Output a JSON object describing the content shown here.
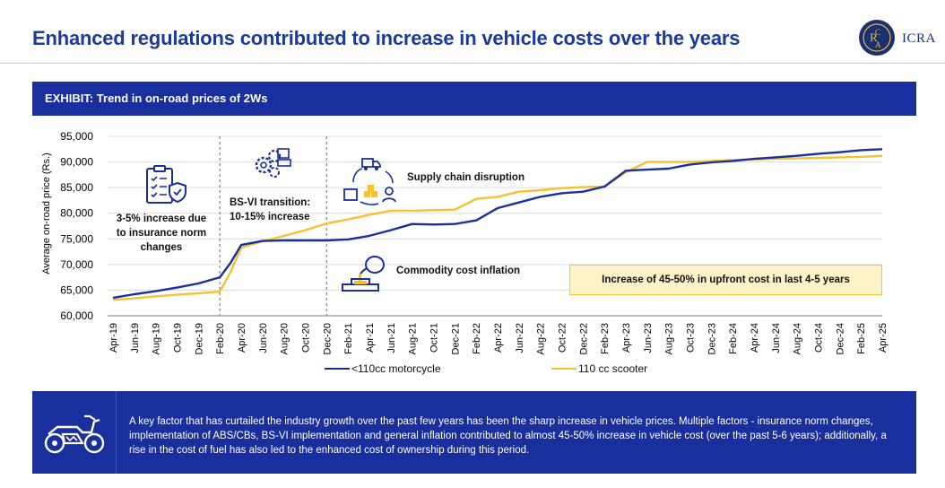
{
  "header": {
    "title": "Enhanced regulations contributed to increase in vehicle costs over the years",
    "logo_text": "ICRA",
    "logo_letters": "ICRA"
  },
  "exhibit": {
    "label": "EXHIBIT: Trend in on-road prices of 2Ws"
  },
  "annotations": {
    "insurance": "3-5% increase due to insurance norm changes",
    "bs6_line1": "BS-VI transition:",
    "bs6_line2": "10-15% increase",
    "supply": "Supply chain disruption",
    "commodity": "Commodity cost inflation",
    "callout": "Increase of 45-50% in upfront cost in last 4-5 years"
  },
  "footer": {
    "text": "A key factor that has curtailed the industry growth over the past few years has been the sharp increase in vehicle prices. Multiple factors - insurance norm changes, implementation of ABS/CBs, BS-VI implementation and general inflation contributed to almost 45-50% increase in vehicle cost (over the past 5-6 years); additionally, a rise in the cost of fuel has also led to the enhanced cost of ownership during this period."
  },
  "icons": [
    "checklist-shield-icon",
    "gears-truck-icon",
    "supply-chain-cycle-icon",
    "pouring-crucible-icon",
    "motorcycle-icon"
  ],
  "colors": {
    "accent": "#1a2f9e",
    "motorcycle": "#1a2f9e",
    "scooter": "#f5c12e",
    "callout_bg": "#fef3c7"
  },
  "chart_data": {
    "type": "line",
    "ylabel": "Average on-road price (Rs.)",
    "ylim": [
      60000,
      95000
    ],
    "yticks": [
      "60,000",
      "65,000",
      "70,000",
      "75,000",
      "80,000",
      "85,000",
      "90,000",
      "95,000"
    ],
    "x_tick_labels": [
      "Apr-19",
      "Jun-19",
      "Aug-19",
      "Oct-19",
      "Dec-19",
      "Feb-20",
      "Apr-20",
      "Jun-20",
      "Aug-20",
      "Oct-20",
      "Dec-20",
      "Feb-21",
      "Apr-21",
      "Jun-21",
      "Aug-21",
      "Oct-21",
      "Dec-21",
      "Feb-22",
      "Apr-22",
      "Jun-22",
      "Aug-22",
      "Oct-22",
      "Dec-22",
      "Feb-23",
      "Apr-23",
      "Jun-23",
      "Aug-23",
      "Oct-23",
      "Dec-23",
      "Feb-24",
      "Apr-24",
      "Jun-24",
      "Aug-24",
      "Oct-24",
      "Dec-24",
      "Feb-25",
      "Apr-25"
    ],
    "grid": true,
    "legend_position": "bottom",
    "vertical_markers": [
      "Feb-20",
      "Dec-20"
    ],
    "x": [
      "Apr-19",
      "Jun-19",
      "Aug-19",
      "Oct-19",
      "Dec-19",
      "Feb-20",
      "Mar-20",
      "Apr-20",
      "Jun-20",
      "Aug-20",
      "Oct-20",
      "Dec-20",
      "Feb-21",
      "Apr-21",
      "Jun-21",
      "Aug-21",
      "Oct-21",
      "Dec-21",
      "Feb-22",
      "Apr-22",
      "Jun-22",
      "Aug-22",
      "Oct-22",
      "Dec-22",
      "Feb-23",
      "Apr-23",
      "Jun-23",
      "Aug-23",
      "Oct-23",
      "Dec-23",
      "Feb-24",
      "Apr-24",
      "Jun-24",
      "Aug-24",
      "Oct-24",
      "Dec-24",
      "Feb-25",
      "Apr-25"
    ],
    "series": [
      {
        "name": "<110cc motorcycle",
        "values": [
          63500,
          64200,
          64800,
          65500,
          66300,
          67500,
          70300,
          73800,
          74600,
          74700,
          74700,
          74700,
          74900,
          75600,
          76700,
          77900,
          77800,
          77900,
          78600,
          81000,
          82100,
          83200,
          83900,
          84200,
          85200,
          88300,
          88500,
          88700,
          89500,
          89900,
          90200,
          90600,
          90900,
          91200,
          91600,
          91900,
          92300,
          92500
        ]
      },
      {
        "name": "110 cc scooter",
        "values": [
          63100,
          63400,
          63800,
          64100,
          64400,
          64700,
          68500,
          73300,
          74500,
          75600,
          76700,
          78000,
          78800,
          79700,
          80500,
          80500,
          80600,
          80700,
          82800,
          83200,
          84200,
          84500,
          84900,
          85100,
          85200,
          88000,
          90000,
          90000,
          90000,
          90200,
          90400,
          90500,
          90600,
          90700,
          90800,
          90900,
          91000,
          91200
        ]
      }
    ]
  }
}
